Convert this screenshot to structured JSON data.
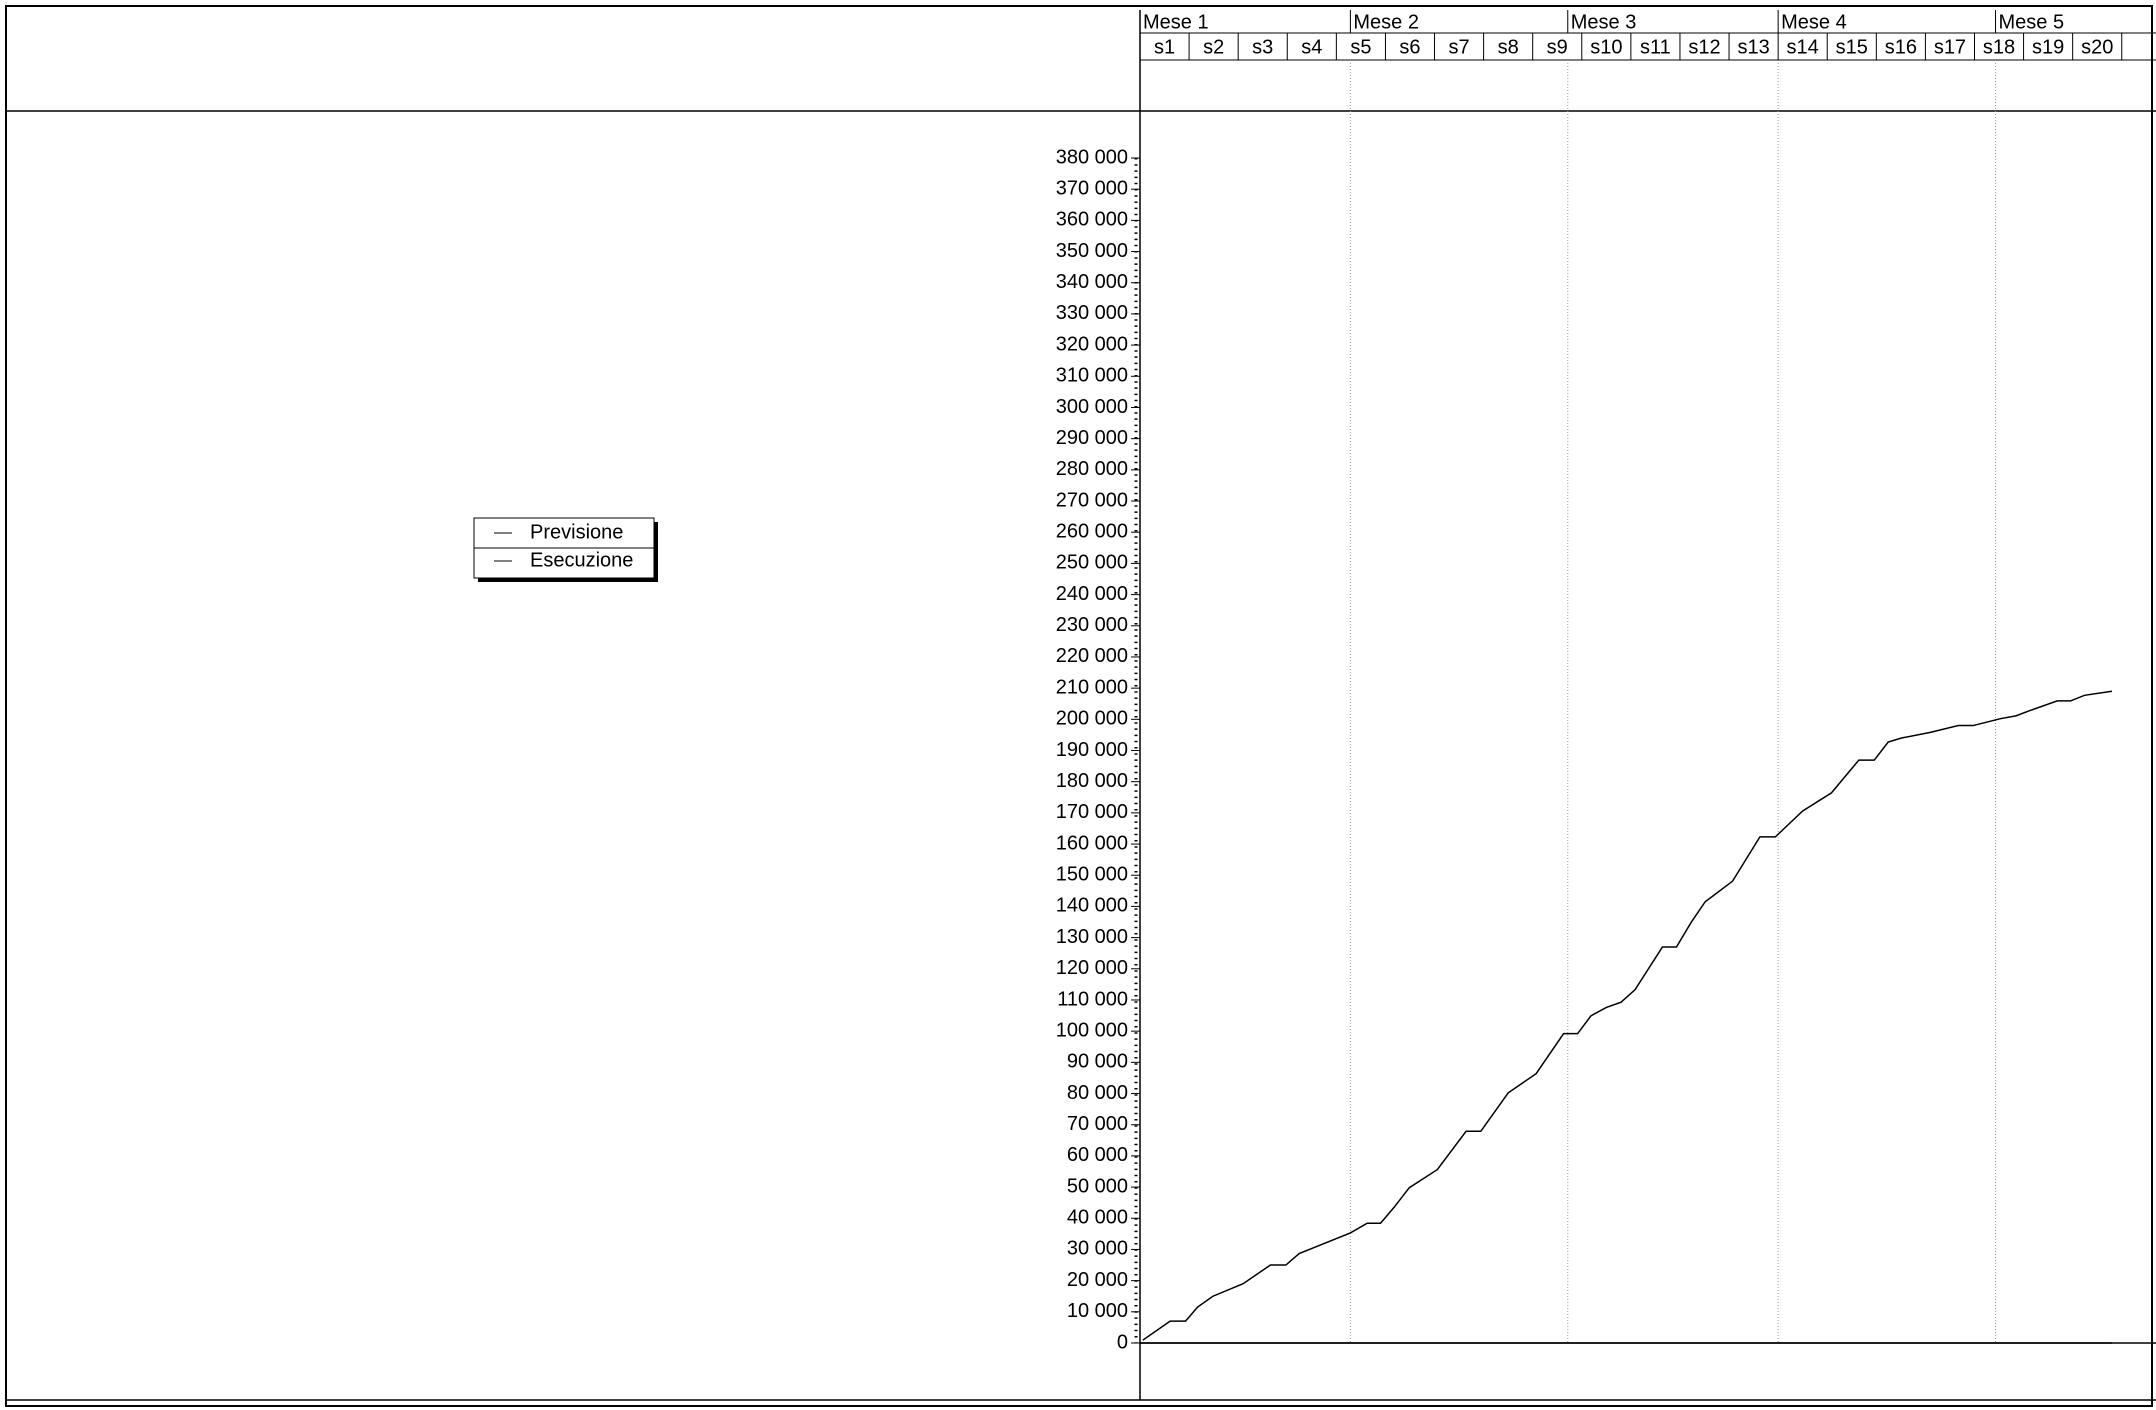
{
  "chart_data": {
    "type": "line",
    "months": [
      "Mese 1",
      "Mese 2",
      "Mese 3",
      "Mese 4",
      "Mese 5"
    ],
    "month_starts": [
      0,
      30,
      61,
      91,
      122
    ],
    "weeks": [
      "s1",
      "s2",
      "s3",
      "s4",
      "s5",
      "s6",
      "s7",
      "s8",
      "s9",
      "s10",
      "s11",
      "s12",
      "s13",
      "s14",
      "s15",
      "s16",
      "s17",
      "s18",
      "s19",
      "s20"
    ],
    "week_days": 7,
    "xlim": [
      0,
      145
    ],
    "ylim": [
      0,
      380000
    ],
    "yticks": [
      0,
      {
        "value": 10000,
        "label": "10 000"
      },
      {
        "value": 20000,
        "label": "20 000"
      },
      {
        "value": 30000,
        "label": "30 000"
      },
      {
        "value": 40000,
        "label": "40 000"
      },
      {
        "value": 50000,
        "label": "50 000"
      },
      {
        "value": 60000,
        "label": "60 000"
      },
      {
        "value": 70000,
        "label": "70 000"
      },
      {
        "value": 80000,
        "label": "80 000"
      },
      {
        "value": 90000,
        "label": "90 000"
      },
      {
        "value": 100000,
        "label": "100 000"
      },
      {
        "value": 110000,
        "label": "110 000"
      },
      {
        "value": 120000,
        "label": "120 000"
      },
      {
        "value": 130000,
        "label": "130 000"
      },
      {
        "value": 140000,
        "label": "140 000"
      },
      {
        "value": 150000,
        "label": "150 000"
      },
      {
        "value": 160000,
        "label": "160 000"
      },
      {
        "value": 170000,
        "label": "170 000"
      },
      {
        "value": 180000,
        "label": "180 000"
      },
      {
        "value": 190000,
        "label": "190 000"
      },
      {
        "value": 200000,
        "label": "200 000"
      },
      {
        "value": 210000,
        "label": "210 000"
      },
      {
        "value": 220000,
        "label": "220 000"
      },
      {
        "value": 230000,
        "label": "230 000"
      },
      {
        "value": 240000,
        "label": "240 000"
      },
      {
        "value": 250000,
        "label": "250 000"
      },
      {
        "value": 260000,
        "label": "260 000"
      },
      {
        "value": 270000,
        "label": "270 000"
      },
      {
        "value": 280000,
        "label": "280 000"
      },
      {
        "value": 290000,
        "label": "290 000"
      },
      {
        "value": 300000,
        "label": "300 000"
      },
      {
        "value": 310000,
        "label": "310 000"
      },
      {
        "value": 320000,
        "label": "320 000"
      },
      {
        "value": 330000,
        "label": "330 000"
      },
      {
        "value": 340000,
        "label": "340 000"
      },
      {
        "value": 350000,
        "label": "350 000"
      },
      {
        "value": 360000,
        "label": "360 000"
      },
      {
        "value": 370000,
        "label": "370 000"
      },
      {
        "value": 380000,
        "label": "380 000"
      }
    ],
    "series": [
      {
        "name": "Previsione",
        "color": "#000000",
        "x": [
          0,
          138.6
        ],
        "values": [
          0,
          0
        ]
      },
      {
        "name": "Esecuzione",
        "color": "#000000",
        "x": [
          0.4,
          4.3,
          6.5,
          8.2,
          10.4,
          14.7,
          18.6,
          20.8,
          22.7,
          30,
          32.4,
          34.3,
          36.3,
          38.4,
          42.4,
          46.5,
          48.6,
          52.5,
          56.5,
          60.4,
          62.4,
          64.3,
          66.5,
          68.6,
          70.6,
          74.5,
          76.5,
          78.6,
          80.6,
          84.5,
          88.4,
          90.6,
          94.5,
          98.6,
          102.5,
          104.7,
          106.7,
          108.6,
          112.7,
          116.7,
          118.8,
          122.7,
          124.9,
          126.9,
          130.8,
          132.7,
          134.7,
          138.6
        ],
        "values": [
          900,
          7000,
          7000,
          11500,
          15000,
          19000,
          25000,
          25000,
          28700,
          35300,
          38400,
          38400,
          43700,
          49800,
          55600,
          67900,
          67900,
          80200,
          86400,
          99200,
          99200,
          104900,
          107600,
          109300,
          113300,
          127000,
          127000,
          134900,
          141500,
          148100,
          162300,
          162300,
          170600,
          176400,
          186900,
          186900,
          192700,
          194000,
          195800,
          198000,
          198000,
          200200,
          201100,
          202800,
          205900,
          205900,
          207700,
          209000
        ]
      }
    ]
  }
}
